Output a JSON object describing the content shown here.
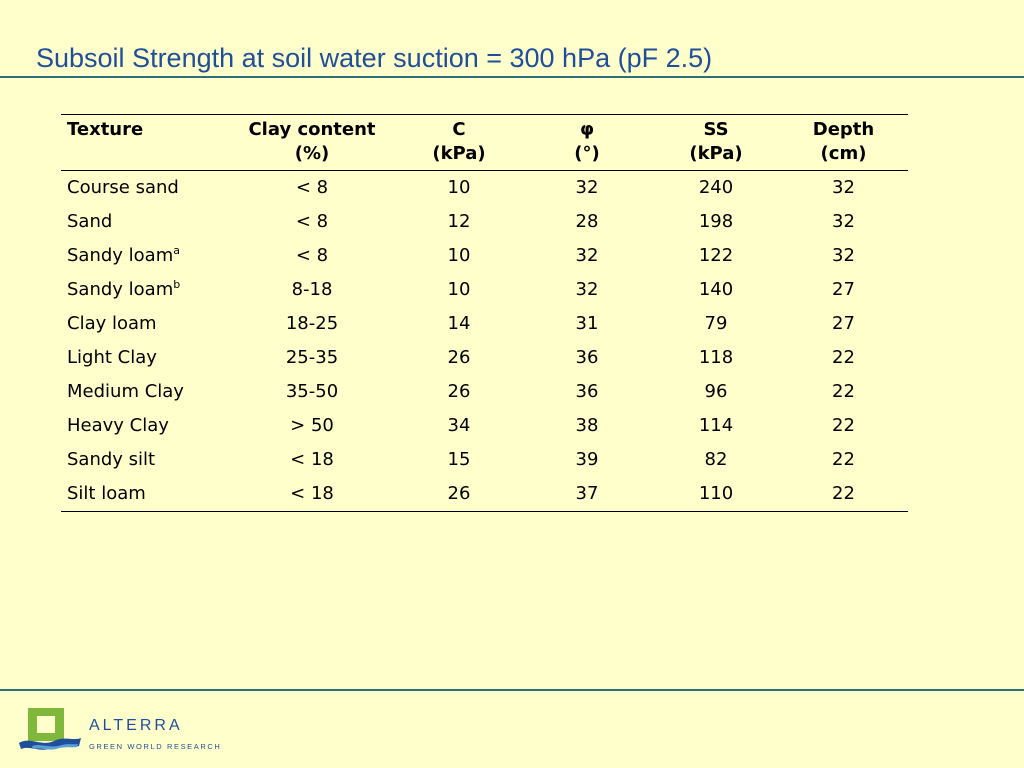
{
  "slide": {
    "title": "Subsoil Strength at soil water suction = 300 hPa (pF 2.5)"
  },
  "table": {
    "headers": [
      {
        "line1": "Texture",
        "line2": ""
      },
      {
        "line1": "Clay content",
        "line2": "(%)"
      },
      {
        "line1": "C",
        "line2": "(kPa)"
      },
      {
        "line1": "φ",
        "line2": "(°)"
      },
      {
        "line1": "SS",
        "line2": "(kPa)"
      },
      {
        "line1": "Depth",
        "line2": "(cm)"
      }
    ],
    "rows": [
      {
        "texture": "Course sand",
        "sup": "",
        "clay": "< 8",
        "c": "10",
        "phi": "32",
        "ss": "240",
        "depth": "32"
      },
      {
        "texture": "Sand",
        "sup": "",
        "clay": "< 8",
        "c": "12",
        "phi": "28",
        "ss": "198",
        "depth": "32"
      },
      {
        "texture": "Sandy loam",
        "sup": "a",
        "clay": "< 8",
        "c": "10",
        "phi": "32",
        "ss": "122",
        "depth": "32"
      },
      {
        "texture": "Sandy loam",
        "sup": "b",
        "clay": "8-18",
        "c": "10",
        "phi": "32",
        "ss": "140",
        "depth": "27"
      },
      {
        "texture": "Clay loam",
        "sup": "",
        "clay": "18-25",
        "c": "14",
        "phi": "31",
        "ss": "79",
        "depth": "27"
      },
      {
        "texture": "Light Clay",
        "sup": "",
        "clay": "25-35",
        "c": "26",
        "phi": "36",
        "ss": "118",
        "depth": "22"
      },
      {
        "texture": "Medium Clay",
        "sup": "",
        "clay": "35-50",
        "c": "26",
        "phi": "36",
        "ss": "96",
        "depth": "22"
      },
      {
        "texture": "Heavy Clay",
        "sup": "",
        "clay": "> 50",
        "c": "34",
        "phi": "38",
        "ss": "114",
        "depth": "22"
      },
      {
        "texture": "Sandy silt",
        "sup": "",
        "clay": "< 18",
        "c": "15",
        "phi": "39",
        "ss": "82",
        "depth": "22"
      },
      {
        "texture": "Silt loam",
        "sup": "",
        "clay": "< 18",
        "c": "26",
        "phi": "37",
        "ss": "110",
        "depth": "22"
      }
    ]
  },
  "footer": {
    "brand_name": "ALTERRA",
    "brand_tagline": "GREEN WORLD RESEARCH",
    "logo_icon": "alterra-logo-icon"
  },
  "colors": {
    "background": "#ffffcc",
    "title": "#1f4e9a",
    "rule": "#2f6f78",
    "logo_green": "#7fb83a",
    "logo_blue": "#1f4e9a"
  }
}
